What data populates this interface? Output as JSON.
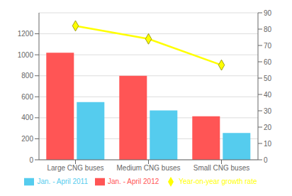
{
  "chart_data": {
    "type": "bar",
    "categories": [
      "Large CNG buses",
      "Medium CNG buses",
      "Small CNG buses"
    ],
    "series": [
      {
        "name": "Jan. - April 2012",
        "color": "#FF5555",
        "values": [
          1020,
          800,
          415
        ]
      },
      {
        "name": "Jan. - April 2011",
        "color": "#55CCEE",
        "values": [
          550,
          470,
          255
        ]
      },
      {
        "name": "Year-on-year growth rate",
        "type": "line",
        "axis": "y2",
        "color": "#FFFF00",
        "marker": "diamond",
        "values": [
          82,
          74,
          58
        ]
      }
    ],
    "ylim": [
      0,
      1400
    ],
    "yticks": [
      0,
      200,
      400,
      600,
      800,
      1000,
      1200
    ],
    "y2lim": [
      0,
      90
    ],
    "y2ticks": [
      0,
      10,
      20,
      30,
      40,
      50,
      60,
      70,
      80,
      90
    ],
    "grid": true,
    "legend": "bottom"
  }
}
